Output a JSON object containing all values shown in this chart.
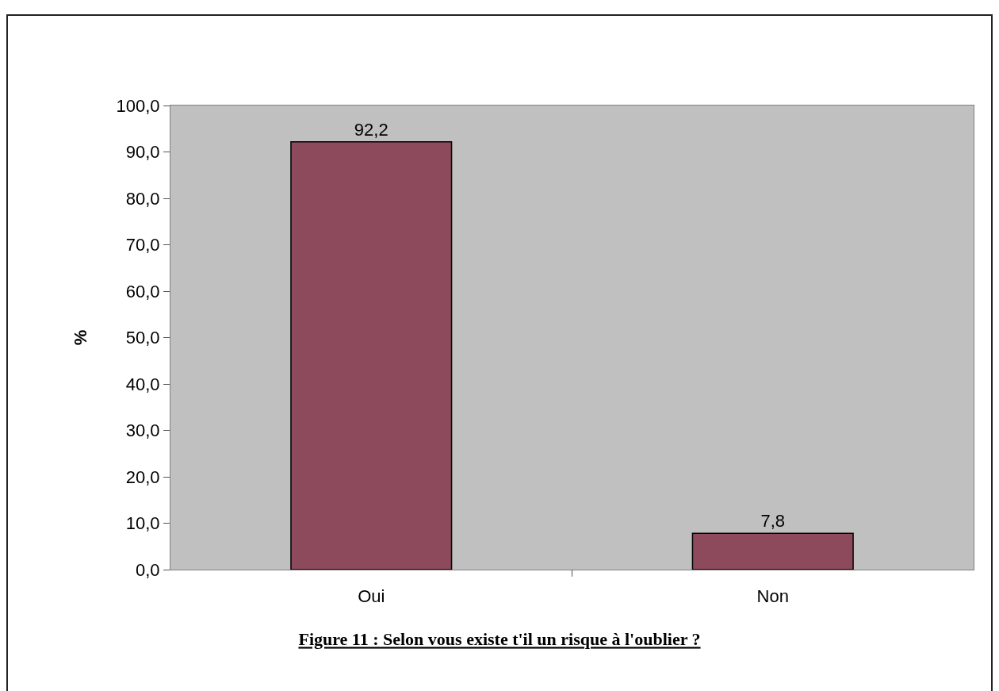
{
  "chart_data": {
    "type": "bar",
    "title": "Figure 11 : Selon vous existe t'il un risque à l'oublier ?",
    "ylabel": "%",
    "categories": [
      "Oui",
      "Non"
    ],
    "values": [
      92.2,
      7.8
    ],
    "value_labels": [
      "92,2",
      "7,8"
    ],
    "color": "#8c4a5c",
    "ylim": [
      0,
      100
    ],
    "yticks": [
      {
        "value": 0,
        "label": "0,0"
      },
      {
        "value": 10,
        "label": "10,0"
      },
      {
        "value": 20,
        "label": "20,0"
      },
      {
        "value": 30,
        "label": "30,0"
      },
      {
        "value": 40,
        "label": "40,0"
      },
      {
        "value": 50,
        "label": "50,0"
      },
      {
        "value": 60,
        "label": "60,0"
      },
      {
        "value": 70,
        "label": "70,0"
      },
      {
        "value": 80,
        "label": "80,0"
      },
      {
        "value": 90,
        "label": "90,0"
      },
      {
        "value": 100,
        "label": "100,0"
      }
    ],
    "grid": false,
    "legend": false
  }
}
